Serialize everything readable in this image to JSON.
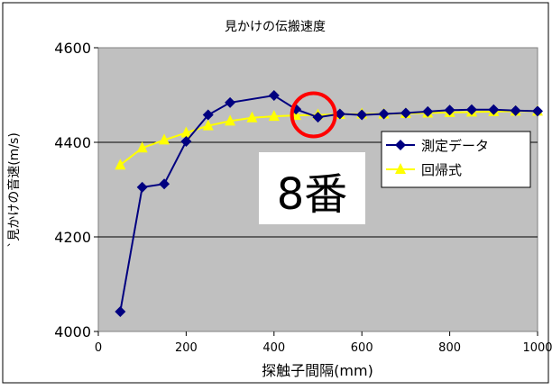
{
  "chart_data": {
    "type": "line",
    "title": "見かけの伝搬速度",
    "xlabel": "探触子間隔(mm)",
    "ylabel": "`見かけの音速(m/s)",
    "xlim": [
      0,
      1000
    ],
    "ylim": [
      4000,
      4600
    ],
    "x_ticks": [
      0,
      200,
      400,
      600,
      800,
      1000
    ],
    "y_ticks": [
      4000,
      4200,
      4400,
      4600
    ],
    "grid": "horizontal",
    "legend_position": "right",
    "series": [
      {
        "name": "測定データ",
        "color": "#000080",
        "marker": "diamond",
        "x": [
          50,
          100,
          150,
          200,
          250,
          300,
          400,
          450,
          500,
          550,
          600,
          650,
          700,
          750,
          800,
          850,
          900,
          950,
          1000
        ],
        "y": [
          4042,
          4305,
          4312,
          4402,
          4458,
          4484,
          4499,
          4470,
          4453,
          4460,
          4458,
          4460,
          4462,
          4465,
          4468,
          4469,
          4469,
          4467,
          4466
        ]
      },
      {
        "name": "回帰式",
        "color": "#ffff00",
        "marker": "triangle",
        "x": [
          50,
          100,
          150,
          200,
          250,
          300,
          350,
          400,
          450,
          500,
          550,
          600,
          650,
          700,
          750,
          800,
          850,
          900,
          950,
          1000
        ],
        "y": [
          4352,
          4388,
          4405,
          4420,
          4435,
          4445,
          4452,
          4455,
          4457,
          4458,
          4459,
          4460,
          4460,
          4461,
          4462,
          4463,
          4464,
          4465,
          4466,
          4466
        ]
      }
    ],
    "annotations": [
      {
        "kind": "circle",
        "color": "#ff0000",
        "x": 490,
        "y": 4458
      },
      {
        "kind": "label",
        "text": "8番"
      }
    ]
  }
}
